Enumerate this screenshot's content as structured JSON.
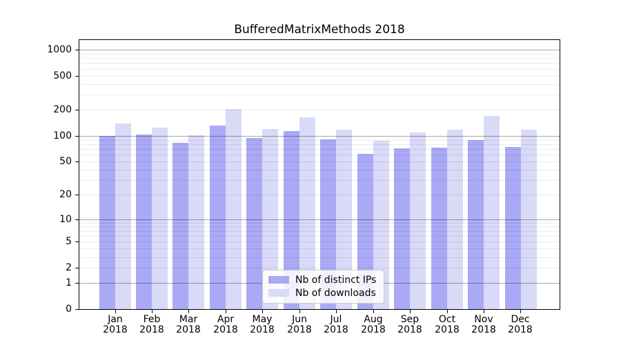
{
  "title": "BufferedMatrixMethods 2018",
  "chart_data": {
    "type": "bar",
    "title": "BufferedMatrixMethods 2018",
    "y_scale": "log1p",
    "grid": "on",
    "ylim": [
      0,
      1295
    ],
    "y_ticks": [
      0,
      1,
      2,
      5,
      10,
      20,
      50,
      100,
      200,
      500,
      1000
    ],
    "major_gridlines": [
      1,
      10,
      100,
      1000
    ],
    "minor_gridline_decades": [
      1,
      10,
      100
    ],
    "categories": [
      "Jan",
      "Feb",
      "Mar",
      "Apr",
      "May",
      "Jun",
      "Jul",
      "Aug",
      "Sep",
      "Oct",
      "Nov",
      "Dec"
    ],
    "x_year": "2018",
    "series": [
      {
        "name": "Nb of distinct IPs",
        "color": "#a9a9f5",
        "values": [
          100,
          103,
          83,
          132,
          94,
          113,
          91,
          62,
          71,
          73,
          90,
          74
        ]
      },
      {
        "name": "Nb of downloads",
        "color": "#d9d9f8",
        "values": [
          140,
          124,
          102,
          207,
          120,
          165,
          118,
          87,
          110,
          117,
          172,
          118
        ]
      }
    ],
    "legend_position": "lower center"
  }
}
